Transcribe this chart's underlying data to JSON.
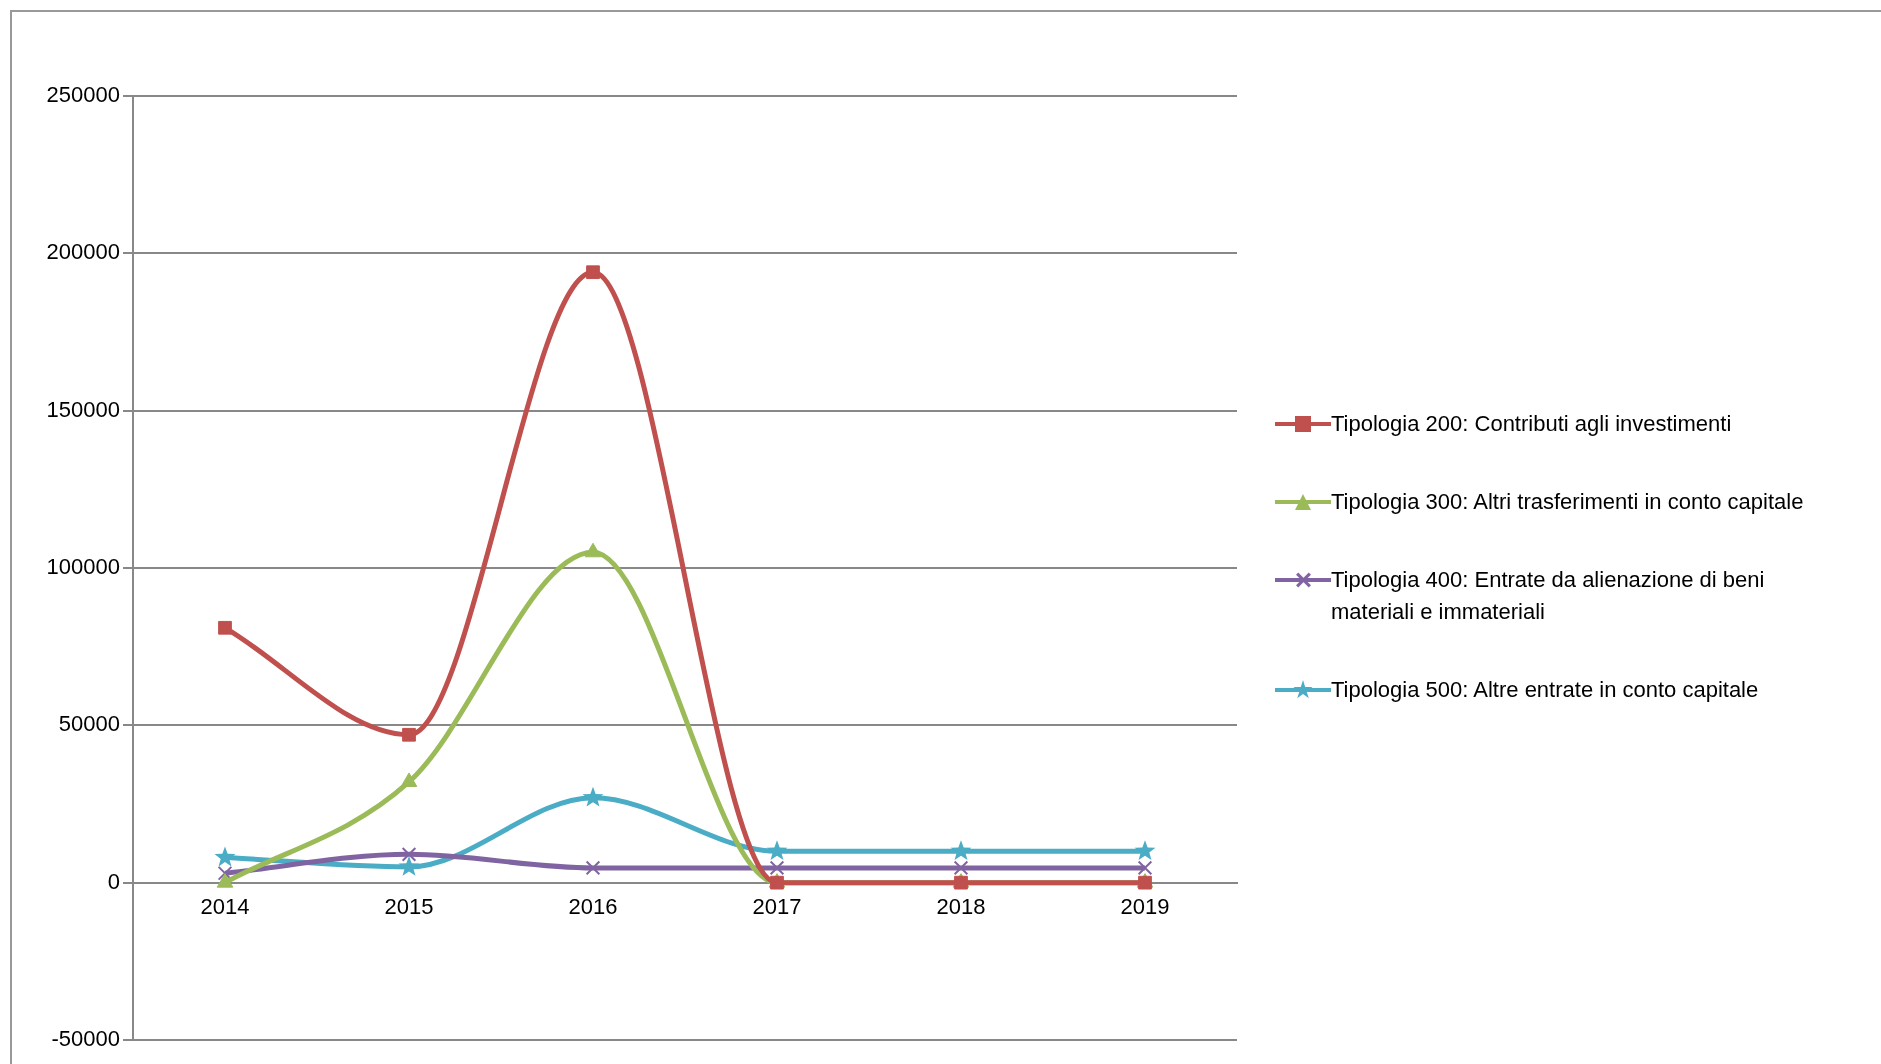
{
  "chart_data": {
    "type": "line",
    "categories": [
      "2014",
      "2015",
      "2016",
      "2017",
      "2018",
      "2019"
    ],
    "series": [
      {
        "name": "Tipologia 200: Contributi agli investimenti",
        "color": "#c0504d",
        "marker": "square",
        "values": [
          81000,
          47000,
          194000,
          0,
          0,
          0
        ]
      },
      {
        "name": "Tipologia 300: Altri trasferimenti in conto capitale",
        "color": "#9bbb59",
        "marker": "triangle",
        "values": [
          0,
          32000,
          105000,
          0,
          0,
          0
        ]
      },
      {
        "name": "Tipologia 400: Entrate da alienazione di beni materiali e immateriali",
        "color": "#8064a2",
        "marker": "cross",
        "values": [
          3000,
          9000,
          4700,
          4700,
          4700,
          4700
        ]
      },
      {
        "name": "Tipologia 500: Altre entrate in conto capitale",
        "color": "#4bacc6",
        "marker": "star",
        "values": [
          8000,
          5000,
          27000,
          10000,
          10000,
          10000
        ]
      }
    ],
    "ylim": [
      -50000,
      250000
    ],
    "yticks": [
      -50000,
      0,
      50000,
      100000,
      150000,
      200000,
      250000
    ],
    "grid": "y",
    "legend": "right"
  }
}
